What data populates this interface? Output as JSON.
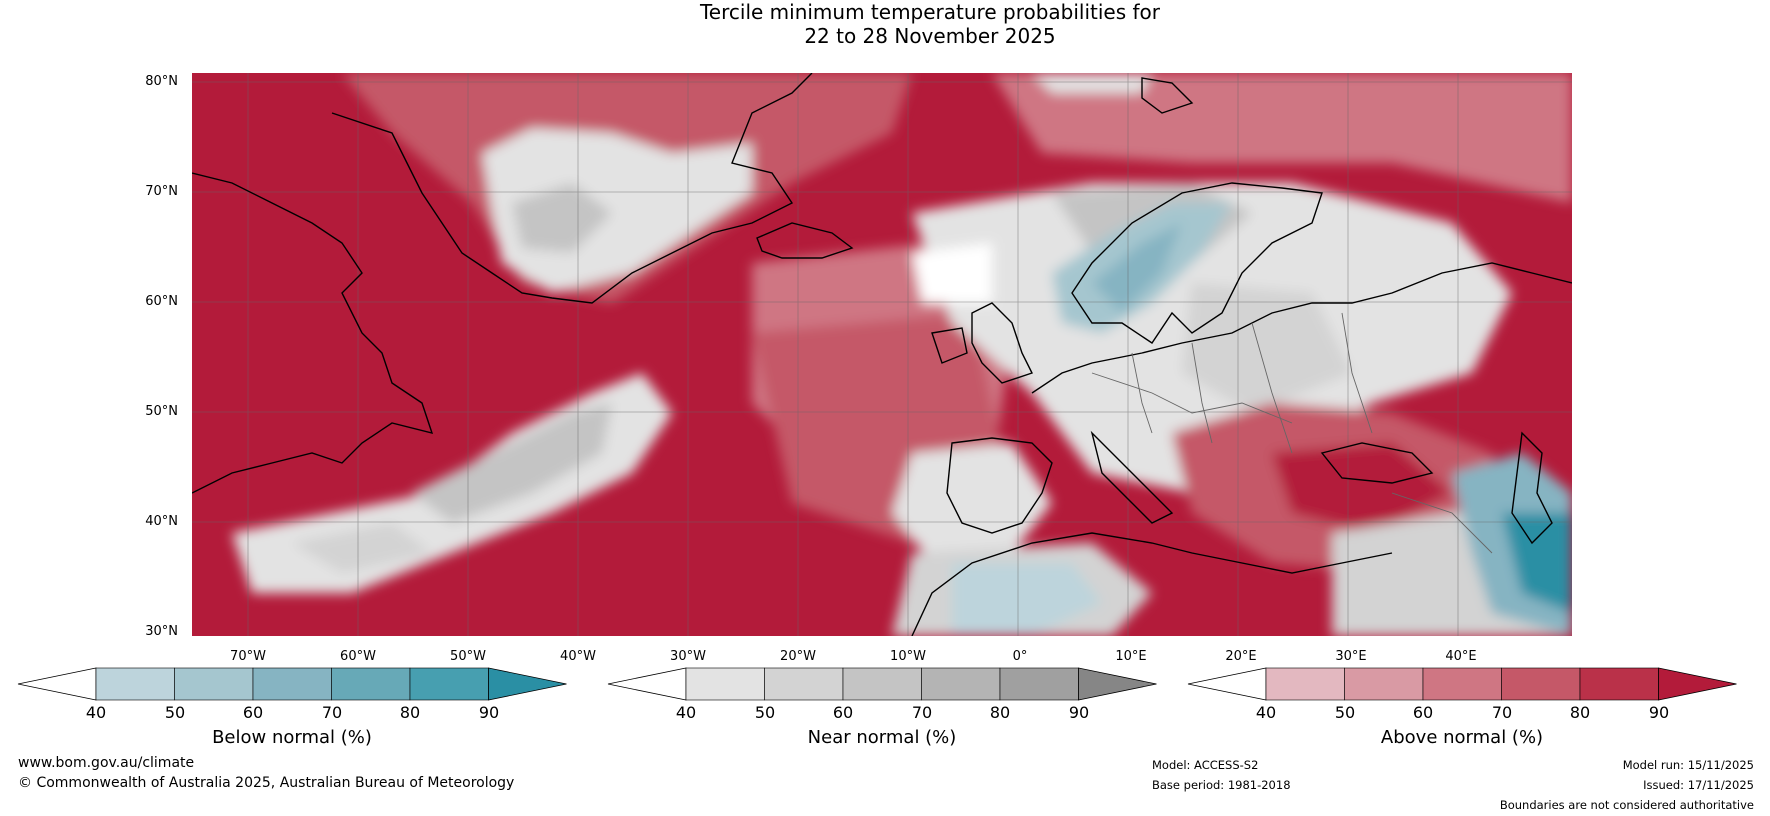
{
  "title": {
    "line1": "Tercile minimum temperature probabilities for",
    "line2": "22 to 28 November 2025"
  },
  "lat_labels": [
    "80°N",
    "70°N",
    "60°N",
    "50°N",
    "40°N",
    "30°N"
  ],
  "lon_labels": [
    "70°W",
    "60°W",
    "50°W",
    "40°W",
    "30°W",
    "20°W",
    "10°W",
    "0°",
    "10°E",
    "20°E",
    "30°E",
    "40°E"
  ],
  "colorbars": {
    "below": {
      "label": "Below normal (%)",
      "ticks": [
        "40",
        "50",
        "60",
        "70",
        "80",
        "90"
      ],
      "colors": [
        "#ffffff",
        "#bdd4dc",
        "#a5c6cf",
        "#86b4c2",
        "#67a9b7",
        "#479fb0",
        "#2a8fa4"
      ]
    },
    "near": {
      "label": "Near normal (%)",
      "ticks": [
        "40",
        "50",
        "60",
        "70",
        "80",
        "90"
      ],
      "colors": [
        "#ffffff",
        "#e3e3e3",
        "#d3d3d3",
        "#c4c4c4",
        "#b4b4b4",
        "#a0a0a0",
        "#868686"
      ]
    },
    "above": {
      "label": "Above normal (%)",
      "ticks": [
        "40",
        "50",
        "60",
        "70",
        "80",
        "90"
      ],
      "colors": [
        "#ffffff",
        "#e3b8c0",
        "#d99aa4",
        "#cf7683",
        "#c55868",
        "#ba3149",
        "#b31b3a"
      ]
    }
  },
  "footer": {
    "website": "www.bom.gov.au/climate",
    "copyright": "© Commonwealth of Australia 2025, Australian Bureau of Meteorology",
    "model": "Model: ACCESS-S2",
    "base_period": "Base period: 1981-2018",
    "model_run": "Model run: 15/11/2025",
    "issued": "Issued: 17/11/2025",
    "disclaimer": "Boundaries are not considered authoritative"
  }
}
